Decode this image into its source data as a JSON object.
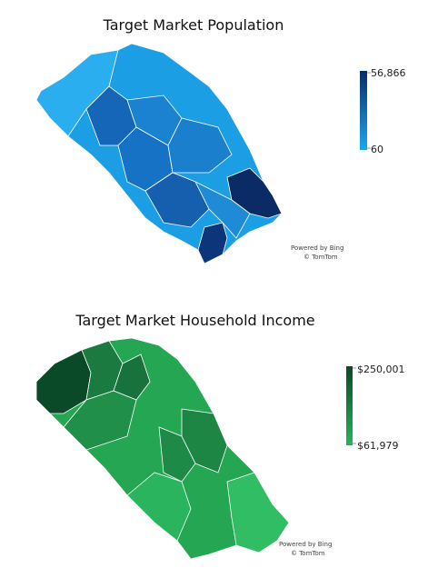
{
  "maps": [
    {
      "title": "Target Market Population",
      "legend": {
        "max": {
          "value": 56866,
          "label": "56,866"
        },
        "min": 60,
        "high_color": "#0b2b66",
        "low_color": "#1aa8ec"
      },
      "attribution": [
        "Powered by Bing",
        "© TomTom"
      ]
    },
    {
      "title": "Target Market Household Income",
      "legend": {
        "max": {
          "value": 250001,
          "label": "$250,001"
        },
        "min": {
          "value": 61979,
          "label": "$61,979"
        },
        "high_color": "#0b4a28",
        "low_color": "#29b35c"
      },
      "attribution": [
        "Powered by Bing",
        "© TomTom"
      ]
    }
  ]
}
